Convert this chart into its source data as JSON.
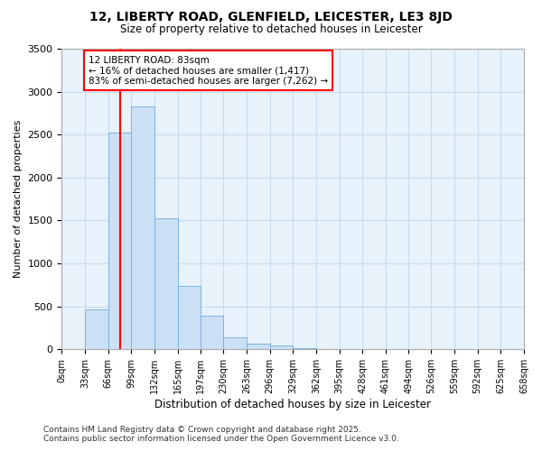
{
  "title1": "12, LIBERTY ROAD, GLENFIELD, LEICESTER, LE3 8JD",
  "title2": "Size of property relative to detached houses in Leicester",
  "xlabel": "Distribution of detached houses by size in Leicester",
  "ylabel": "Number of detached properties",
  "bin_edges": [
    0,
    33,
    66,
    99,
    132,
    165,
    197,
    230,
    263,
    296,
    329,
    362,
    395,
    428,
    461,
    494,
    526,
    559,
    592,
    625,
    658
  ],
  "bar_heights": [
    5,
    470,
    2520,
    2830,
    1530,
    740,
    390,
    140,
    70,
    50,
    10,
    5,
    0,
    0,
    0,
    0,
    0,
    0,
    0,
    0
  ],
  "bar_facecolor": "#cce0f5",
  "bar_edgecolor": "#7ab3e0",
  "grid_color": "#c8daea",
  "bg_color": "#e8f2fb",
  "red_line_x": 83,
  "annotation_title": "12 LIBERTY ROAD: 83sqm",
  "annotation_line1": "← 16% of detached houses are smaller (1,417)",
  "annotation_line2": "83% of semi-detached houses are larger (7,262) →",
  "ylim": [
    0,
    3500
  ],
  "yticks": [
    0,
    500,
    1000,
    1500,
    2000,
    2500,
    3000,
    3500
  ],
  "footnote1": "Contains HM Land Registry data © Crown copyright and database right 2025.",
  "footnote2": "Contains public sector information licensed under the Open Government Licence v3.0."
}
